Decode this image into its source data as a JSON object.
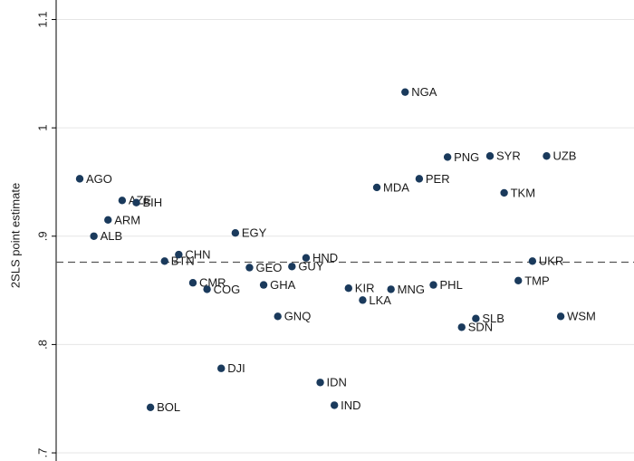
{
  "chart_data": {
    "type": "scatter",
    "y_label": "2SLS point estimate",
    "categories": [
      "AGO",
      "ALB",
      "ARM",
      "AZE",
      "BIH",
      "BOL",
      "BTN",
      "CHN",
      "CMR",
      "COG",
      "DJI",
      "EGY",
      "GEO",
      "GHA",
      "GNQ",
      "GUY",
      "HND",
      "IDN",
      "IND",
      "KIR",
      "LKA",
      "MDA",
      "MNG",
      "NGA",
      "PER",
      "PHL",
      "PNG",
      "SDN",
      "SLB",
      "SYR",
      "TKM",
      "TMP",
      "UKR",
      "UZB",
      "WSM"
    ],
    "values": [
      0.953,
      0.9,
      0.915,
      0.933,
      0.931,
      0.742,
      0.877,
      0.883,
      0.857,
      0.851,
      0.778,
      0.903,
      0.871,
      0.855,
      0.826,
      0.872,
      0.88,
      0.765,
      0.744,
      0.852,
      0.841,
      0.945,
      0.851,
      1.033,
      0.953,
      0.855,
      0.973,
      0.816,
      0.824,
      0.974,
      0.94,
      0.859,
      0.877,
      0.974,
      0.826
    ],
    "color": "#1a3a5c",
    "reference_line": 0.876,
    "ylim": [
      0.6925,
      1.118
    ],
    "yticks": [
      {
        "value": 0.7,
        "label": ".7"
      },
      {
        "value": 0.8,
        "label": ".8"
      },
      {
        "value": 0.9,
        "label": ".9"
      },
      1,
      1.1
    ],
    "grid": true
  }
}
